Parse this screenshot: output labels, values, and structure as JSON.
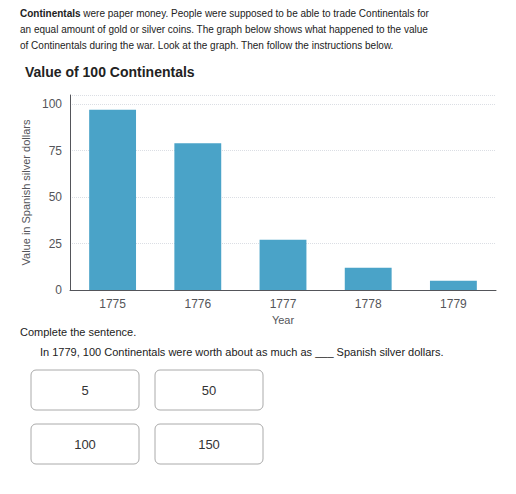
{
  "chart_data": {
    "type": "bar",
    "title": "Value of 100 Continentals",
    "xlabel": "Year",
    "ylabel": "Value in Spanish silver dollars",
    "categories": [
      "1775",
      "1776",
      "1777",
      "1778",
      "1779"
    ],
    "values": [
      97,
      79,
      27,
      12,
      5
    ],
    "color": "#4aa3c8",
    "ylim": [
      0,
      105
    ],
    "yticks": [
      0,
      25,
      50,
      75,
      100
    ],
    "grid": true,
    "annotations": [
      "Continentals",
      " were paper money. People were supposed to be able to trade Continentals for",
      "an equal amount of gold or silver coins. The graph below shows what happened to the value",
      "of Continentals during the war. Look at the graph. Then follow the instructions below.",
      "Complete the sentence.",
      "In 1779, 100 Continentals were worth about as much as ___ Spanish silver dollars.",
      "5",
      "50",
      "100",
      "150"
    ]
  }
}
